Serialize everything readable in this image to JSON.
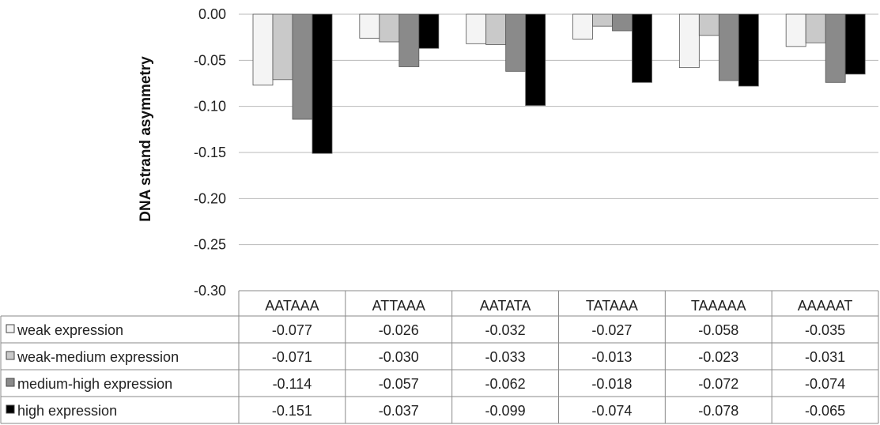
{
  "chart_data": {
    "type": "bar",
    "title": "",
    "xlabel": "",
    "ylabel": "DNA strand asymmetry",
    "ylim": [
      -0.3,
      0.0
    ],
    "yticks": [
      "0.00",
      "-0.05",
      "-0.10",
      "-0.15",
      "-0.20",
      "-0.25",
      "-0.30"
    ],
    "grid": true,
    "legend": "data-table",
    "categories": [
      "AATAAA",
      "ATTAAA",
      "AATATA",
      "TATAAA",
      "TAAAAA",
      "AAAAAT"
    ],
    "series": [
      {
        "name": "weak expression",
        "color": "#f4f4f4",
        "values": [
          -0.077,
          -0.026,
          -0.032,
          -0.027,
          -0.058,
          -0.035
        ],
        "labels": [
          "-0.077",
          "-0.026",
          "-0.032",
          "-0.027",
          "-0.058",
          "-0.035"
        ]
      },
      {
        "name": "weak-medium expression",
        "color": "#c9c9c9",
        "values": [
          -0.071,
          -0.03,
          -0.033,
          -0.013,
          -0.023,
          -0.031
        ],
        "labels": [
          "-0.071",
          "-0.030",
          "-0.033",
          "-0.013",
          "-0.023",
          "-0.031"
        ]
      },
      {
        "name": "medium-high expression",
        "color": "#8a8a8a",
        "values": [
          -0.114,
          -0.057,
          -0.062,
          -0.018,
          -0.072,
          -0.074
        ],
        "labels": [
          "-0.114",
          "-0.057",
          "-0.062",
          "-0.018",
          "-0.072",
          "-0.074"
        ]
      },
      {
        "name": "high expression",
        "color": "#000000",
        "values": [
          -0.151,
          -0.037,
          -0.099,
          -0.074,
          -0.078,
          -0.065
        ],
        "labels": [
          "-0.151",
          "-0.037",
          "-0.099",
          "-0.074",
          "-0.078",
          "-0.065"
        ]
      }
    ]
  }
}
